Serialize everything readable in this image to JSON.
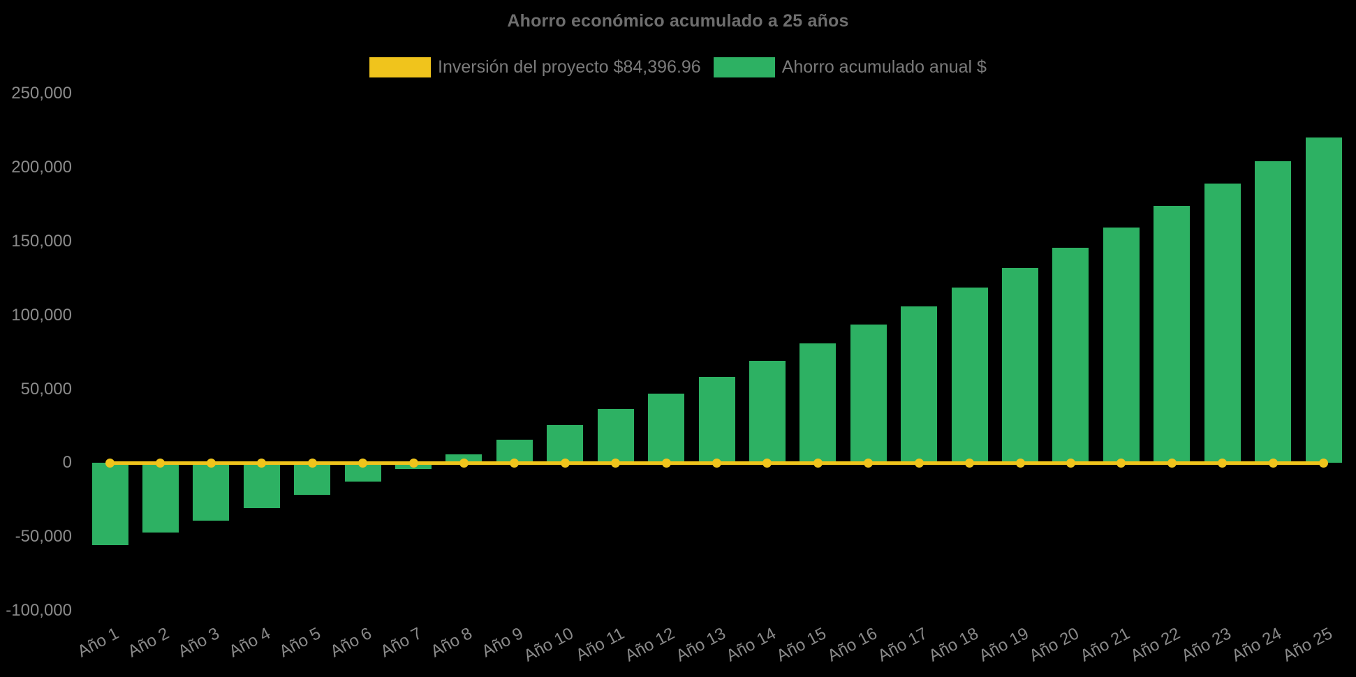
{
  "chart": {
    "title": "Ahorro económico acumulado a 25 años",
    "legend": {
      "items": [
        {
          "label": "Inversión del proyecto $84,396.96",
          "color": "#f0c41c",
          "series": "line"
        },
        {
          "label": "Ahorro acumulado anual $",
          "color": "#2db163",
          "series": "bar"
        }
      ]
    }
  },
  "chart_data": {
    "type": "bar",
    "title": "Ahorro económico acumulado a 25 años",
    "categories": [
      "Año 1",
      "Año 2",
      "Año 3",
      "Año 4",
      "Año 5",
      "Año 6",
      "Año 7",
      "Año 8",
      "Año 9",
      "Año 10",
      "Año 11",
      "Año 12",
      "Año 13",
      "Año 14",
      "Año 15",
      "Año 16",
      "Año 17",
      "Año 18",
      "Año 19",
      "Año 20",
      "Año 21",
      "Año 22",
      "Año 23",
      "Año 24",
      "Año 25"
    ],
    "series": [
      {
        "name": "Inversión del proyecto $84,396.96",
        "type": "line",
        "color": "#f0c41c",
        "values": [
          0,
          0,
          0,
          0,
          0,
          0,
          0,
          0,
          0,
          0,
          0,
          0,
          0,
          0,
          0,
          0,
          0,
          0,
          0,
          0,
          0,
          0,
          0,
          0,
          0
        ]
      },
      {
        "name": "Ahorro acumulado anual $",
        "type": "bar",
        "color": "#2db163",
        "values": [
          -55800,
          -47300,
          -39000,
          -30700,
          -21400,
          -12800,
          -3900,
          6000,
          15600,
          25500,
          36300,
          46800,
          58100,
          69000,
          80900,
          93600,
          105900,
          118600,
          131900,
          145600,
          159300,
          173900,
          189000,
          204200,
          220200
        ]
      }
    ],
    "xlabel": "",
    "ylabel": "",
    "ylim": [
      -100000,
      250000
    ],
    "ytick_interval": 50000,
    "ytick_labels": [
      "250,000",
      "200,000",
      "150,000",
      "100,000",
      "50,000",
      "0",
      "-50,000",
      "-100,000"
    ],
    "ytick_values": [
      250000,
      200000,
      150000,
      100000,
      50000,
      0,
      -50000,
      -100000
    ],
    "grid": false,
    "legend_position": "top",
    "background_color": "#000000",
    "axis_text_color": "#8a8a8a",
    "title_color": "#6e6e6e"
  }
}
